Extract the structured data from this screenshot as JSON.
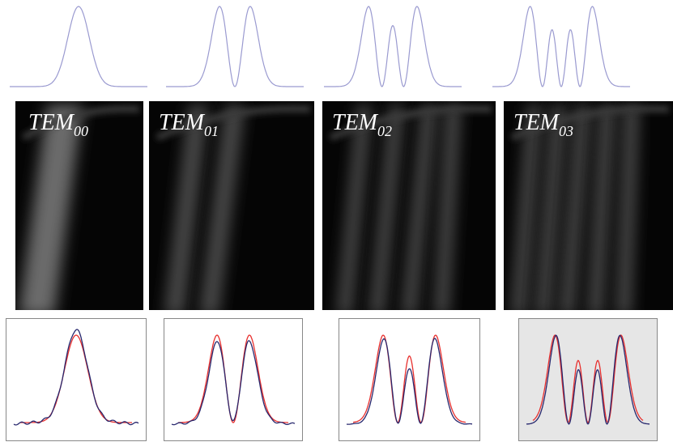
{
  "panels": [
    {
      "label": {
        "base": "TEM",
        "sub": "00"
      }
    },
    {
      "label": {
        "base": "TEM",
        "sub": "01"
      }
    },
    {
      "label": {
        "base": "TEM",
        "sub": "02"
      }
    },
    {
      "label": {
        "base": "TEM",
        "sub": "03"
      }
    }
  ]
}
